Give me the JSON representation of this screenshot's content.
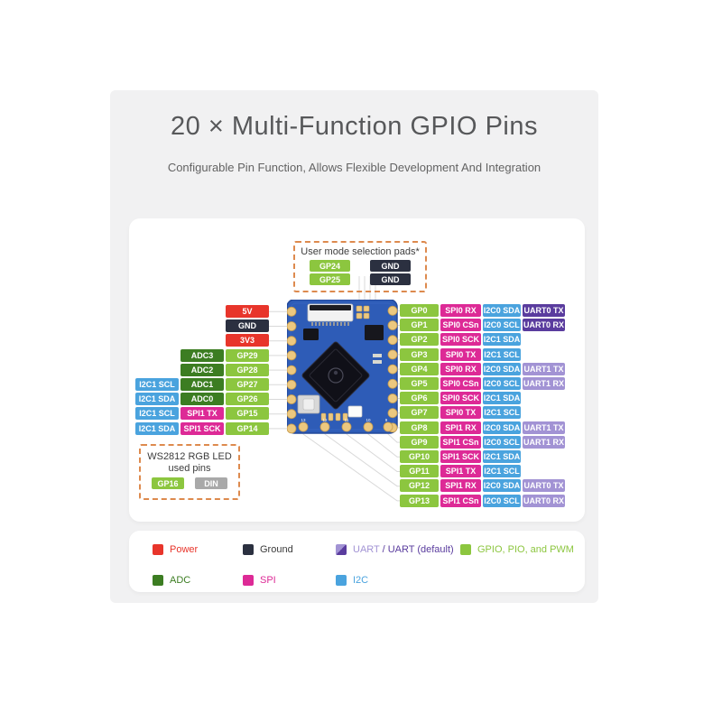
{
  "title": "20 × Multi-Function GPIO Pins",
  "subtitle": "Configurable Pin Function, Allows Flexible Development And Integration",
  "colors": {
    "power": "#e8352b",
    "ground": "#2b3040",
    "gpio": "#8cc63f",
    "adc": "#3c7d22",
    "spi": "#dd2a96",
    "i2c": "#4aa3de",
    "uart_default": "#5a3c9e",
    "uart": "#a293d4",
    "din": "#a9a9a9",
    "callout_border": "#dd8a4e",
    "line": "#d9d9d9"
  },
  "user_mode_box": {
    "title": "User mode selection pads*",
    "rows": [
      {
        "pin": {
          "text": "GP24",
          "type": "gpio"
        },
        "pad": {
          "text": "GND",
          "type": "ground"
        }
      },
      {
        "pin": {
          "text": "GP25",
          "type": "gpio"
        },
        "pad": {
          "text": "GND",
          "type": "ground"
        }
      }
    ]
  },
  "ws2812_box": {
    "title_line1": "WS2812 RGB LED",
    "title_line2": "used pins",
    "row": {
      "pin": {
        "text": "GP16",
        "type": "gpio"
      },
      "pad": {
        "text": "DIN",
        "type": "din"
      }
    }
  },
  "left_pins": [
    {
      "cells": [
        {
          "text": "5V",
          "type": "power"
        }
      ]
    },
    {
      "cells": [
        {
          "text": "GND",
          "type": "ground"
        }
      ]
    },
    {
      "cells": [
        {
          "text": "3V3",
          "type": "power"
        }
      ]
    },
    {
      "cells": [
        {
          "text": "ADC3",
          "type": "adc"
        },
        {
          "text": "GP29",
          "type": "gpio"
        }
      ]
    },
    {
      "cells": [
        {
          "text": "ADC2",
          "type": "adc"
        },
        {
          "text": "GP28",
          "type": "gpio"
        }
      ]
    },
    {
      "cells": [
        {
          "text": "I2C1 SCL",
          "type": "i2c"
        },
        {
          "text": "ADC1",
          "type": "adc"
        },
        {
          "text": "GP27",
          "type": "gpio"
        }
      ]
    },
    {
      "cells": [
        {
          "text": "I2C1 SDA",
          "type": "i2c"
        },
        {
          "text": "ADC0",
          "type": "adc"
        },
        {
          "text": "GP26",
          "type": "gpio"
        }
      ]
    },
    {
      "cells": [
        {
          "text": "I2C1 SCL",
          "type": "i2c"
        },
        {
          "text": "SPI1 TX",
          "type": "spi"
        },
        {
          "text": "GP15",
          "type": "gpio"
        }
      ]
    },
    {
      "cells": [
        {
          "text": "I2C1 SDA",
          "type": "i2c"
        },
        {
          "text": "SPI1 SCK",
          "type": "spi"
        },
        {
          "text": "GP14",
          "type": "gpio"
        }
      ]
    }
  ],
  "right_pins": [
    {
      "cells": [
        {
          "text": "GP0",
          "type": "gpio"
        },
        {
          "text": "SPI0 RX",
          "type": "spi"
        },
        {
          "text": "I2C0 SDA",
          "type": "i2c"
        },
        {
          "text": "UART0 TX",
          "type": "uart_default"
        }
      ]
    },
    {
      "cells": [
        {
          "text": "GP1",
          "type": "gpio"
        },
        {
          "text": "SPI0 CSn",
          "type": "spi"
        },
        {
          "text": "I2C0 SCL",
          "type": "i2c"
        },
        {
          "text": "UART0 RX",
          "type": "uart_default"
        }
      ]
    },
    {
      "cells": [
        {
          "text": "GP2",
          "type": "gpio"
        },
        {
          "text": "SPI0 SCK",
          "type": "spi"
        },
        {
          "text": "I2C1 SDA",
          "type": "i2c"
        }
      ]
    },
    {
      "cells": [
        {
          "text": "GP3",
          "type": "gpio"
        },
        {
          "text": "SPI0 TX",
          "type": "spi"
        },
        {
          "text": "I2C1 SCL",
          "type": "i2c"
        }
      ]
    },
    {
      "cells": [
        {
          "text": "GP4",
          "type": "gpio"
        },
        {
          "text": "SPI0 RX",
          "type": "spi"
        },
        {
          "text": "I2C0 SDA",
          "type": "i2c"
        },
        {
          "text": "UART1 TX",
          "type": "uart"
        }
      ]
    },
    {
      "cells": [
        {
          "text": "GP5",
          "type": "gpio"
        },
        {
          "text": "SPI0 CSn",
          "type": "spi"
        },
        {
          "text": "I2C0 SCL",
          "type": "i2c"
        },
        {
          "text": "UART1 RX",
          "type": "uart"
        }
      ]
    },
    {
      "cells": [
        {
          "text": "GP6",
          "type": "gpio"
        },
        {
          "text": "SPI0 SCK",
          "type": "spi"
        },
        {
          "text": "I2C1 SDA",
          "type": "i2c"
        }
      ]
    },
    {
      "cells": [
        {
          "text": "GP7",
          "type": "gpio"
        },
        {
          "text": "SPI0 TX",
          "type": "spi"
        },
        {
          "text": "I2C1 SCL",
          "type": "i2c"
        }
      ]
    },
    {
      "cells": [
        {
          "text": "GP8",
          "type": "gpio"
        },
        {
          "text": "SPI1 RX",
          "type": "spi"
        },
        {
          "text": "I2C0 SDA",
          "type": "i2c"
        },
        {
          "text": "UART1 TX",
          "type": "uart"
        }
      ]
    },
    {
      "cells": [
        {
          "text": "GP9",
          "type": "gpio"
        },
        {
          "text": "SPI1 CSn",
          "type": "spi"
        },
        {
          "text": "I2C0 SCL",
          "type": "i2c"
        },
        {
          "text": "UART1 RX",
          "type": "uart"
        }
      ]
    },
    {
      "cells": [
        {
          "text": "GP10",
          "type": "gpio"
        },
        {
          "text": "SPI1 SCK",
          "type": "spi"
        },
        {
          "text": "I2C1 SDA",
          "type": "i2c"
        }
      ]
    },
    {
      "cells": [
        {
          "text": "GP11",
          "type": "gpio"
        },
        {
          "text": "SPI1 TX",
          "type": "spi"
        },
        {
          "text": "I2C1 SCL",
          "type": "i2c"
        }
      ]
    },
    {
      "cells": [
        {
          "text": "GP12",
          "type": "gpio"
        },
        {
          "text": "SPI1 RX",
          "type": "spi"
        },
        {
          "text": "I2C0 SDA",
          "type": "i2c"
        },
        {
          "text": "UART0 TX",
          "type": "uart"
        }
      ]
    },
    {
      "cells": [
        {
          "text": "GP13",
          "type": "gpio"
        },
        {
          "text": "SPI1 CSn",
          "type": "spi"
        },
        {
          "text": "I2C0 SCL",
          "type": "i2c"
        },
        {
          "text": "UART0 RX",
          "type": "uart"
        }
      ]
    }
  ],
  "legend": {
    "rows": [
      [
        {
          "label": "Power",
          "type": "power"
        },
        {
          "label": "Ground",
          "type": "ground"
        },
        {
          "type": "uart_split",
          "label_parts": [
            {
              "text": "UART",
              "type": "uart"
            },
            {
              "text": " / ",
              "type": "uart_default"
            },
            {
              "text": "UART (default)",
              "type": "uart_default"
            }
          ]
        },
        {
          "label": "GPIO, PIO, and PWM",
          "type": "gpio"
        }
      ],
      [
        {
          "label": "ADC",
          "type": "adc"
        },
        {
          "label": "SPI",
          "type": "spi"
        },
        {
          "label": "I2C",
          "type": "i2c"
        }
      ]
    ]
  }
}
